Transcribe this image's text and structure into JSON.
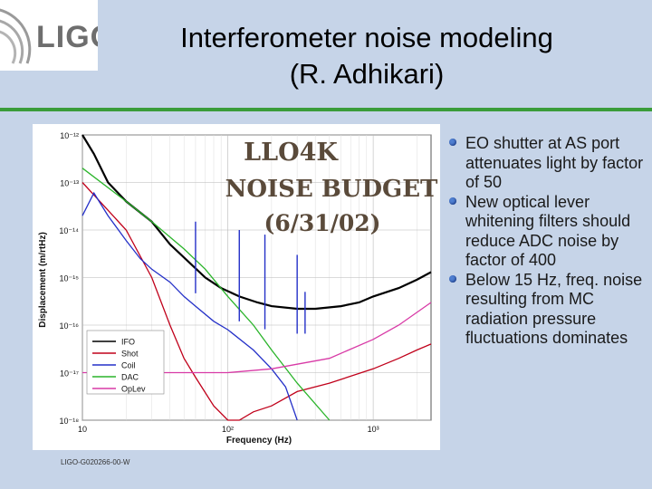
{
  "header": {
    "logo_text": "LIGO",
    "title_line1": "Interferometer noise modeling",
    "title_line2": "(R. Adhikari)"
  },
  "bullets": [
    "EO shutter at AS port attenuates light by factor of 50",
    "New optical lever whitening filters should reduce ADC noise by factor of 400",
    "Below 15 Hz, freq. noise resulting from MC radiation pressure fluctuations dominates"
  ],
  "footer": "LIGO-G020266-00-W",
  "colors": {
    "background": "#c6d4e8",
    "rule": "#3a9c3a",
    "bullet": "#4f7fd1",
    "IFO": "#000000",
    "Shot": "#c0001a",
    "Coil": "#2430c8",
    "DAC": "#2ab42a",
    "OpLev": "#d83aa6",
    "annotation": "#5a4a3a"
  },
  "chart_data": {
    "type": "line",
    "annotation": [
      "LLO4K",
      "NOISE BUDGET",
      "(6/31/02)"
    ],
    "xlabel": "Frequency (Hz)",
    "ylabel": "Displacement (m/rtHz)",
    "log_x": true,
    "log_y": true,
    "xlim": [
      10,
      2500
    ],
    "ylim": [
      1e-18,
      1e-12
    ],
    "x_ticks": [
      "10",
      "10²",
      "10³"
    ],
    "y_ticks": [
      "10⁻¹²",
      "10⁻¹³",
      "10⁻¹⁴",
      "10⁻¹⁵",
      "10⁻¹⁶",
      "10⁻¹⁷",
      "10⁻¹⁸"
    ],
    "grid": true,
    "legend_position": "bottom-left",
    "series": [
      {
        "name": "IFO",
        "color": "#000000",
        "x": [
          10,
          12,
          15,
          20,
          30,
          40,
          55,
          70,
          90,
          120,
          160,
          200,
          300,
          400,
          600,
          800,
          1000,
          1500,
          2000,
          2500
        ],
        "y": [
          1e-12,
          4e-13,
          1e-13,
          4e-14,
          1.5e-14,
          5e-15,
          2e-15,
          1e-15,
          6e-16,
          4e-16,
          3e-16,
          2.5e-16,
          2.2e-16,
          2.2e-16,
          2.5e-16,
          3e-16,
          4e-16,
          6e-16,
          9e-16,
          1.3e-15
        ]
      },
      {
        "name": "Shot",
        "color": "#c0001a",
        "x": [
          10,
          20,
          30,
          40,
          50,
          60,
          80,
          100,
          120,
          150,
          200,
          300,
          500,
          1000,
          1500,
          2000,
          2500
        ],
        "y": [
          1e-13,
          1e-14,
          1e-15,
          1e-16,
          2e-17,
          8e-18,
          2e-18,
          1e-18,
          1e-18,
          1.5e-18,
          2e-18,
          4e-18,
          6e-18,
          1.2e-17,
          2e-17,
          3e-17,
          4e-17
        ]
      },
      {
        "name": "Coil",
        "color": "#2430c8",
        "x": [
          10,
          12,
          15,
          20,
          25,
          30,
          40,
          50,
          60,
          80,
          100,
          150,
          200,
          250,
          300
        ],
        "y": [
          2e-14,
          6e-14,
          2e-14,
          6e-15,
          2.5e-15,
          1.5e-15,
          8e-16,
          4e-16,
          2.5e-16,
          1.2e-16,
          8e-17,
          3e-17,
          1.2e-17,
          5e-18,
          1e-18
        ]
      },
      {
        "name": "DAC",
        "color": "#2ab42a",
        "x": [
          10,
          20,
          30,
          50,
          70,
          100,
          150,
          200,
          300,
          500
        ],
        "y": [
          2e-13,
          4e-14,
          1.5e-14,
          4e-15,
          1.5e-15,
          4e-16,
          1e-16,
          3e-17,
          6e-18,
          1e-18
        ]
      },
      {
        "name": "OpLev",
        "color": "#d83aa6",
        "x": [
          10,
          30,
          60,
          100,
          200,
          500,
          1000,
          1500,
          2500
        ],
        "y": [
          1e-17,
          1e-17,
          1e-17,
          1e-17,
          1.2e-17,
          2e-17,
          5e-17,
          1e-16,
          3e-16
        ]
      }
    ],
    "spikes": [
      {
        "x": 60,
        "peak": 1.5e-14
      },
      {
        "x": 120,
        "peak": 1e-14
      },
      {
        "x": 180,
        "peak": 8e-15
      },
      {
        "x": 300,
        "peak": 3e-15
      },
      {
        "x": 340,
        "peak": 5e-16
      }
    ]
  }
}
